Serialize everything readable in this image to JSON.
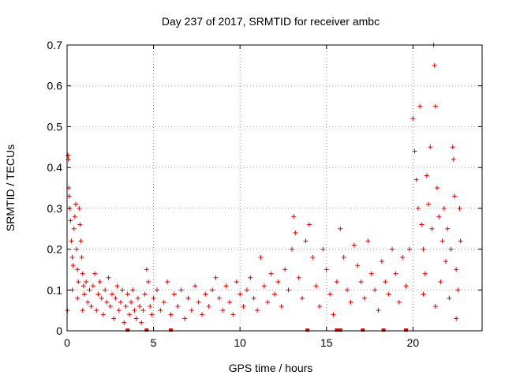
{
  "chart_data": {
    "type": "scatter",
    "title": "Day 237 of 2017, SRMTID for receiver ambc",
    "xlabel": "GPS time / hours",
    "ylabel": "SRMTID / TECUs",
    "xlim": [
      0,
      24
    ],
    "ylim": [
      0,
      0.7
    ],
    "xticks": [
      0,
      5,
      10,
      15,
      20
    ],
    "yticks": [
      0,
      0.1,
      0.2,
      0.3,
      0.4,
      0.5,
      0.6,
      0.7
    ],
    "xtick_labels": [
      "0",
      "5",
      "10",
      "15",
      "20"
    ],
    "ytick_labels": [
      "0",
      "0.1",
      "0.2",
      "0.3",
      "0.4",
      "0.5",
      "0.6",
      "0.7"
    ],
    "grid": true,
    "marker": "+",
    "color": "#e00000",
    "series": [
      {
        "name": "SRMTID",
        "points": [
          [
            0.05,
            0.43
          ],
          [
            0.08,
            0.42
          ],
          [
            0.1,
            0.35
          ],
          [
            0.12,
            0.33
          ],
          [
            0.15,
            0.3
          ],
          [
            0.2,
            0.27
          ],
          [
            0.25,
            0.22
          ],
          [
            0.3,
            0.18
          ],
          [
            0.35,
            0.16
          ],
          [
            0.4,
            0.25
          ],
          [
            0.45,
            0.28
          ],
          [
            0.5,
            0.31
          ],
          [
            0.55,
            0.2
          ],
          [
            0.6,
            0.15
          ],
          [
            0.65,
            0.12
          ],
          [
            0.7,
            0.3
          ],
          [
            0.75,
            0.26
          ],
          [
            0.8,
            0.22
          ],
          [
            0.85,
            0.18
          ],
          [
            0.9,
            0.14
          ],
          [
            0.95,
            0.11
          ],
          [
            0.02,
            0.05
          ],
          [
            0.3,
            0.1
          ],
          [
            0.6,
            0.08
          ],
          [
            0.9,
            0.05
          ],
          [
            1.0,
            0.09
          ],
          [
            1.1,
            0.12
          ],
          [
            1.2,
            0.07
          ],
          [
            1.3,
            0.1
          ],
          [
            1.4,
            0.06
          ],
          [
            1.5,
            0.11
          ],
          [
            1.6,
            0.14
          ],
          [
            1.7,
            0.05
          ],
          [
            1.8,
            0.09
          ],
          [
            1.9,
            0.12
          ],
          [
            2.0,
            0.08
          ],
          [
            2.1,
            0.04
          ],
          [
            2.2,
            0.1
          ],
          [
            2.3,
            0.07
          ],
          [
            2.4,
            0.13
          ],
          [
            2.5,
            0.06
          ],
          [
            2.6,
            0.09
          ],
          [
            2.7,
            0.03
          ],
          [
            2.8,
            0.08
          ],
          [
            2.9,
            0.11
          ],
          [
            3.0,
            0.05
          ],
          [
            3.1,
            0.07
          ],
          [
            3.2,
            0.1
          ],
          [
            3.3,
            0.02
          ],
          [
            3.4,
            0.06
          ],
          [
            3.5,
            0.09
          ],
          [
            3.6,
            0.04
          ],
          [
            3.7,
            0.07
          ],
          [
            3.8,
            0.1
          ],
          [
            3.9,
            0.05
          ],
          [
            4.0,
            0.03
          ],
          [
            4.1,
            0.08
          ],
          [
            4.2,
            0.06
          ],
          [
            4.3,
            0.02
          ],
          [
            4.4,
            0.05
          ],
          [
            4.5,
            0.09
          ],
          [
            4.6,
            0.15
          ],
          [
            4.7,
            0.12
          ],
          [
            4.8,
            0.06
          ],
          [
            4.9,
            0.04
          ],
          [
            5.0,
            0.08
          ],
          [
            5.2,
            0.1
          ],
          [
            5.4,
            0.05
          ],
          [
            5.6,
            0.07
          ],
          [
            5.8,
            0.12
          ],
          [
            6.0,
            0.04
          ],
          [
            6.2,
            0.09
          ],
          [
            6.4,
            0.06
          ],
          [
            6.6,
            0.1
          ],
          [
            6.8,
            0.03
          ],
          [
            7.0,
            0.08
          ],
          [
            7.2,
            0.05
          ],
          [
            7.4,
            0.11
          ],
          [
            7.6,
            0.07
          ],
          [
            7.8,
            0.04
          ],
          [
            8.0,
            0.09
          ],
          [
            8.2,
            0.06
          ],
          [
            8.4,
            0.1
          ],
          [
            8.6,
            0.13
          ],
          [
            8.8,
            0.08
          ],
          [
            9.0,
            0.05
          ],
          [
            9.2,
            0.11
          ],
          [
            9.4,
            0.07
          ],
          [
            9.6,
            0.04
          ],
          [
            9.8,
            0.12
          ],
          [
            10.0,
            0.09
          ],
          [
            10.2,
            0.06
          ],
          [
            10.4,
            0.1
          ],
          [
            10.6,
            0.13
          ],
          [
            10.8,
            0.08
          ],
          [
            11.0,
            0.05
          ],
          [
            11.2,
            0.18
          ],
          [
            11.4,
            0.11
          ],
          [
            11.6,
            0.07
          ],
          [
            11.8,
            0.14
          ],
          [
            12.0,
            0.09
          ],
          [
            12.2,
            0.12
          ],
          [
            12.4,
            0.06
          ],
          [
            12.6,
            0.15
          ],
          [
            12.8,
            0.1
          ],
          [
            13.0,
            0.2
          ],
          [
            13.1,
            0.28
          ],
          [
            13.2,
            0.24
          ],
          [
            13.4,
            0.13
          ],
          [
            13.6,
            0.08
          ],
          [
            13.8,
            0.22
          ],
          [
            14.0,
            0.26
          ],
          [
            14.2,
            0.18
          ],
          [
            14.4,
            0.11
          ],
          [
            14.6,
            0.06
          ],
          [
            14.8,
            0.2
          ],
          [
            15.0,
            0.15
          ],
          [
            15.2,
            0.09
          ],
          [
            15.4,
            0.04
          ],
          [
            15.6,
            0.12
          ],
          [
            15.8,
            0.25
          ],
          [
            16.0,
            0.18
          ],
          [
            16.2,
            0.1
          ],
          [
            16.4,
            0.07
          ],
          [
            16.6,
            0.21
          ],
          [
            16.8,
            0.16
          ],
          [
            17.0,
            0.12
          ],
          [
            17.2,
            0.08
          ],
          [
            17.4,
            0.22
          ],
          [
            17.6,
            0.14
          ],
          [
            17.8,
            0.1
          ],
          [
            18.0,
            0.05
          ],
          [
            18.2,
            0.17
          ],
          [
            18.4,
            0.12
          ],
          [
            18.6,
            0.09
          ],
          [
            18.8,
            0.2
          ],
          [
            19.0,
            0.14
          ],
          [
            19.2,
            0.07
          ],
          [
            19.4,
            0.18
          ],
          [
            19.6,
            0.11
          ],
          [
            19.8,
            0.2
          ],
          [
            20.0,
            0.52
          ],
          [
            20.1,
            0.44
          ],
          [
            20.2,
            0.37
          ],
          [
            20.3,
            0.3
          ],
          [
            20.4,
            0.55
          ],
          [
            20.5,
            0.26
          ],
          [
            20.6,
            0.2
          ],
          [
            20.7,
            0.14
          ],
          [
            20.8,
            0.38
          ],
          [
            20.9,
            0.31
          ],
          [
            21.0,
            0.45
          ],
          [
            21.1,
            0.25
          ],
          [
            21.2,
            0.7
          ],
          [
            21.25,
            0.65
          ],
          [
            21.3,
            0.55
          ],
          [
            21.4,
            0.35
          ],
          [
            21.5,
            0.28
          ],
          [
            21.6,
            0.12
          ],
          [
            21.7,
            0.22
          ],
          [
            21.8,
            0.3
          ],
          [
            21.9,
            0.17
          ],
          [
            22.0,
            0.25
          ],
          [
            22.1,
            0.08
          ],
          [
            22.2,
            0.2
          ],
          [
            22.3,
            0.45
          ],
          [
            22.35,
            0.42
          ],
          [
            22.4,
            0.33
          ],
          [
            22.5,
            0.15
          ],
          [
            22.6,
            0.1
          ],
          [
            22.7,
            0.3
          ],
          [
            22.75,
            0.22
          ],
          [
            22.5,
            0.03
          ],
          [
            20.6,
            0.09
          ],
          [
            21.3,
            0.06
          ]
        ]
      }
    ],
    "rug_x": [
      3.5,
      4.6,
      6.0,
      13.9,
      15.6,
      15.8,
      17.1,
      18.3,
      19.6
    ]
  }
}
